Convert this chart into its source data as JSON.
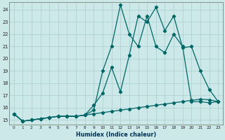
{
  "xlabel": "Humidex (Indice chaleur)",
  "bg_color": "#cce8e8",
  "grid_color": "#aacece",
  "line_color": "#006666",
  "xmin": -0.5,
  "xmax": 23.5,
  "ymin": 14.6,
  "ymax": 24.6,
  "yticks": [
    15,
    16,
    17,
    18,
    19,
    20,
    21,
    22,
    23,
    24
  ],
  "xticks": [
    0,
    1,
    2,
    3,
    4,
    5,
    6,
    7,
    8,
    9,
    10,
    11,
    12,
    13,
    14,
    15,
    16,
    17,
    18,
    19,
    20,
    21,
    22,
    23
  ],
  "series1_x": [
    0,
    1,
    2,
    3,
    4,
    5,
    6,
    7,
    8,
    9,
    10,
    11,
    12,
    13,
    14,
    15,
    16,
    17,
    18,
    19,
    20,
    21,
    22,
    23
  ],
  "series1_y": [
    15.5,
    14.9,
    15.0,
    15.1,
    15.2,
    15.3,
    15.3,
    15.3,
    15.4,
    15.8,
    19.0,
    21.0,
    24.4,
    22.0,
    21.0,
    23.5,
    21.0,
    20.5,
    22.0,
    21.0,
    16.5,
    16.5,
    16.4,
    16.5
  ],
  "series2_x": [
    0,
    1,
    2,
    3,
    4,
    5,
    6,
    7,
    8,
    9,
    10,
    11,
    12,
    13,
    14,
    15,
    16,
    17,
    18,
    19,
    20,
    21,
    22,
    23
  ],
  "series2_y": [
    15.5,
    14.9,
    15.0,
    15.1,
    15.2,
    15.3,
    15.3,
    15.3,
    15.4,
    16.2,
    17.2,
    19.3,
    17.3,
    20.3,
    23.5,
    23.0,
    24.2,
    22.3,
    23.5,
    20.9,
    21.0,
    19.0,
    17.5,
    16.5
  ],
  "series3_x": [
    0,
    1,
    2,
    3,
    4,
    5,
    6,
    7,
    8,
    9,
    10,
    11,
    12,
    13,
    14,
    15,
    16,
    17,
    18,
    19,
    20,
    21,
    22,
    23
  ],
  "series3_y": [
    15.5,
    14.9,
    15.0,
    15.1,
    15.2,
    15.3,
    15.3,
    15.3,
    15.4,
    15.5,
    15.6,
    15.7,
    15.8,
    15.9,
    16.0,
    16.1,
    16.2,
    16.3,
    16.4,
    16.5,
    16.6,
    16.7,
    16.65,
    16.5
  ]
}
